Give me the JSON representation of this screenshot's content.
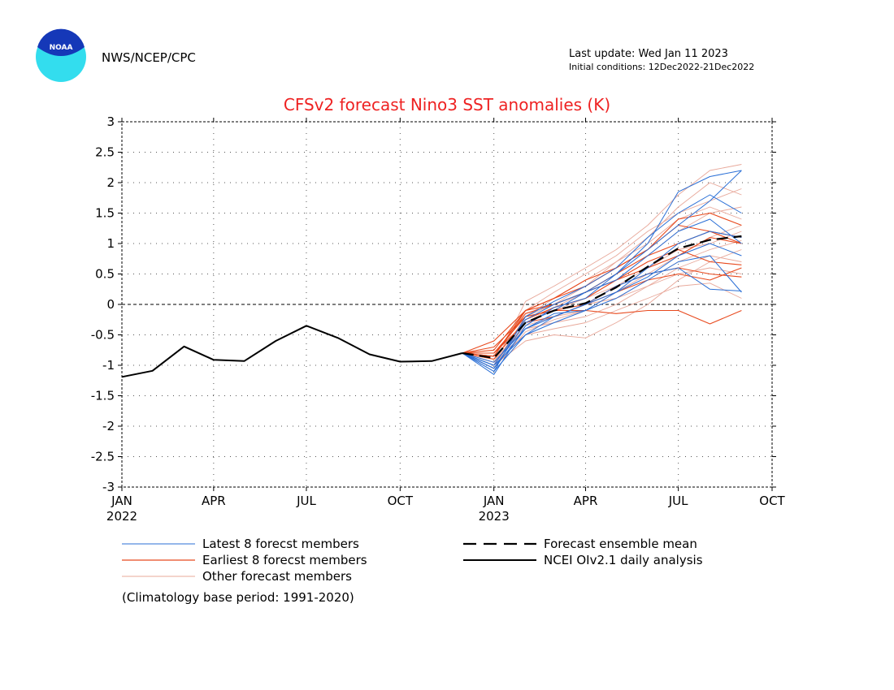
{
  "header": {
    "agency": "NWS/NCEP/CPC",
    "last_update": "Last update: Wed Jan 11 2023",
    "initial_conditions": "Initial conditions: 12Dec2022-21Dec2022",
    "logo_text": "NOAA"
  },
  "footnote": "(Climatology base period: 1991-2020)",
  "colors": {
    "title": "#ee2222",
    "latest": "#2a6fd6",
    "earliest": "#e8491d",
    "other": "#e8a89a",
    "mean": "#000000",
    "analysis": "#000000",
    "logo_outer": "#33ddee",
    "logo_inner": "#1538b8"
  },
  "chart_data": {
    "type": "line",
    "title": "CFSv2 forecast Nino3 SST anomalies (K)",
    "xlabel": "",
    "ylabel": "",
    "ylim": [
      -3,
      3
    ],
    "xlim": [
      "2022-01-01",
      "2023-10-01"
    ],
    "grid": true,
    "yticks": [
      {
        "value": -3,
        "label": "-3"
      },
      {
        "value": -2.5,
        "label": "-2.5"
      },
      {
        "value": -2,
        "label": "-2"
      },
      {
        "value": -1.5,
        "label": "-1.5"
      },
      {
        "value": -1,
        "label": "-1"
      },
      {
        "value": -0.5,
        "label": "-0.5"
      },
      {
        "value": 0,
        "label": "0"
      },
      {
        "value": 0.5,
        "label": "0.5"
      },
      {
        "value": 1,
        "label": "1"
      },
      {
        "value": 1.5,
        "label": "1.5"
      },
      {
        "value": 2,
        "label": "2"
      },
      {
        "value": 2.5,
        "label": "2.5"
      },
      {
        "value": 3,
        "label": "3"
      }
    ],
    "xticks": [
      {
        "date": "2022-01-01",
        "label": "JAN",
        "year": "2022"
      },
      {
        "date": "2022-04-01",
        "label": "APR",
        "year": ""
      },
      {
        "date": "2022-07-01",
        "label": "JUL",
        "year": ""
      },
      {
        "date": "2022-10-01",
        "label": "OCT",
        "year": ""
      },
      {
        "date": "2023-01-01",
        "label": "JAN",
        "year": "2023"
      },
      {
        "date": "2023-04-01",
        "label": "APR",
        "year": ""
      },
      {
        "date": "2023-07-01",
        "label": "JUL",
        "year": ""
      },
      {
        "date": "2023-10-01",
        "label": "OCT",
        "year": ""
      }
    ],
    "analysis": {
      "name": "NCEI OIv2.1 daily analysis",
      "x": [
        "2022-01-01",
        "2022-01-31",
        "2022-03-03",
        "2022-04-01",
        "2022-05-01",
        "2022-06-01",
        "2022-07-01",
        "2022-08-01",
        "2022-09-01",
        "2022-10-01",
        "2022-11-01",
        "2022-12-01"
      ],
      "y": [
        -1.19,
        -1.09,
        -0.69,
        -0.91,
        -0.93,
        -0.6,
        -0.35,
        -0.55,
        -0.82,
        -0.94,
        -0.93,
        -0.8
      ]
    },
    "forecast_months": [
      "2022-12-01",
      "2023-01-01",
      "2023-02-01",
      "2023-03-01",
      "2023-04-01",
      "2023-05-01",
      "2023-06-01",
      "2023-07-01",
      "2023-08-01",
      "2023-09-01"
    ],
    "mean": {
      "name": "Forecast ensemble mean",
      "y": [
        -0.8,
        -0.88,
        -0.3,
        -0.1,
        0.02,
        0.28,
        0.62,
        0.92,
        1.06,
        1.12
      ]
    },
    "series": [
      {
        "name": "Latest 8 forecst members",
        "group": "latest",
        "y": [
          -0.8,
          -1.15,
          -0.35,
          -0.05,
          0.1,
          0.5,
          1.0,
          1.85,
          2.1,
          2.2
        ]
      },
      {
        "name": "Latest 8 forecst members",
        "group": "latest",
        "y": [
          -0.8,
          -1.1,
          -0.2,
          0.05,
          0.3,
          0.6,
          1.1,
          1.5,
          1.8,
          1.5
        ]
      },
      {
        "name": "Latest 8 forecst members",
        "group": "latest",
        "y": [
          -0.8,
          -1.05,
          -0.4,
          -0.15,
          -0.1,
          0.1,
          0.4,
          0.7,
          0.8,
          0.2
        ]
      },
      {
        "name": "Latest 8 forecst members",
        "group": "latest",
        "y": [
          -0.8,
          -1.0,
          -0.5,
          -0.3,
          -0.1,
          0.2,
          0.6,
          1.0,
          1.2,
          1.1
        ]
      },
      {
        "name": "Latest 8 forecst members",
        "group": "latest",
        "y": [
          -0.8,
          -1.0,
          -0.25,
          0.0,
          0.2,
          0.4,
          0.8,
          1.2,
          1.4,
          1.0
        ]
      },
      {
        "name": "Latest 8 forecst members",
        "group": "latest",
        "y": [
          -0.8,
          -0.95,
          -0.4,
          -0.2,
          0.0,
          0.3,
          0.5,
          0.6,
          0.25,
          0.22
        ]
      },
      {
        "name": "Latest 8 forecst members",
        "group": "latest",
        "y": [
          -0.8,
          -1.1,
          -0.5,
          -0.2,
          0.0,
          0.2,
          0.45,
          0.8,
          1.0,
          0.8
        ]
      },
      {
        "name": "Latest 8 forecst members",
        "group": "latest",
        "y": [
          -0.8,
          -1.05,
          -0.3,
          -0.1,
          0.2,
          0.5,
          0.9,
          1.3,
          1.7,
          2.2
        ]
      },
      {
        "name": "Earliest 8 forecst members",
        "group": "earliest",
        "y": [
          -0.8,
          -0.6,
          -0.1,
          0.1,
          0.3,
          0.6,
          0.9,
          1.4,
          1.5,
          1.3
        ]
      },
      {
        "name": "Earliest 8 forecst members",
        "group": "earliest",
        "y": [
          -0.8,
          -0.7,
          -0.2,
          -0.1,
          -0.1,
          -0.15,
          -0.1,
          -0.1,
          -0.32,
          -0.1
        ]
      },
      {
        "name": "Earliest 8 forecst members",
        "group": "earliest",
        "y": [
          -0.8,
          -0.75,
          -0.1,
          0.0,
          0.2,
          0.4,
          0.6,
          0.8,
          1.1,
          1.0
        ]
      },
      {
        "name": "Earliest 8 forecst members",
        "group": "earliest",
        "y": [
          -0.8,
          -0.8,
          -0.3,
          -0.2,
          0.0,
          0.3,
          0.5,
          0.6,
          0.5,
          0.45
        ]
      },
      {
        "name": "Earliest 8 forecst members",
        "group": "earliest",
        "y": [
          -0.8,
          -0.85,
          -0.15,
          0.0,
          0.2,
          0.5,
          0.8,
          1.0,
          1.2,
          1.1
        ]
      },
      {
        "name": "Earliest 8 forecst members",
        "group": "earliest",
        "y": [
          -0.8,
          -0.9,
          -0.25,
          -0.05,
          0.1,
          0.4,
          0.7,
          0.9,
          0.7,
          0.65
        ]
      },
      {
        "name": "Earliest 8 forecst members",
        "group": "earliest",
        "y": [
          -0.8,
          -0.85,
          -0.1,
          0.1,
          0.4,
          0.6,
          0.9,
          1.3,
          1.2,
          1.0
        ]
      },
      {
        "name": "Earliest 8 forecst members",
        "group": "earliest",
        "y": [
          -0.8,
          -0.8,
          -0.2,
          -0.1,
          0.0,
          0.2,
          0.4,
          0.5,
          0.4,
          0.6
        ]
      },
      {
        "name": "Other forecast members",
        "group": "other",
        "y": [
          -0.8,
          -1.0,
          0.05,
          0.3,
          0.6,
          0.9,
          1.3,
          1.8,
          2.2,
          2.3
        ]
      },
      {
        "name": "Other forecast members",
        "group": "other",
        "y": [
          -0.8,
          -1.05,
          -0.3,
          -0.05,
          0.2,
          0.4,
          0.8,
          1.2,
          1.5,
          1.6
        ]
      },
      {
        "name": "Other forecast members",
        "group": "other",
        "y": [
          -0.8,
          -0.95,
          -0.4,
          -0.2,
          -0.1,
          0.1,
          0.3,
          0.5,
          0.6,
          0.5
        ]
      },
      {
        "name": "Other forecast members",
        "group": "other",
        "y": [
          -0.8,
          -0.9,
          -0.5,
          -0.4,
          -0.3,
          -0.1,
          0.1,
          0.3,
          0.35,
          0.1
        ]
      },
      {
        "name": "Other forecast members",
        "group": "other",
        "y": [
          -0.8,
          -1.05,
          -0.2,
          0.0,
          0.3,
          0.7,
          1.1,
          1.6,
          2.0,
          1.8
        ]
      },
      {
        "name": "Other forecast members",
        "group": "other",
        "y": [
          -0.8,
          -1.0,
          -0.6,
          -0.5,
          -0.55,
          -0.3,
          0.0,
          0.4,
          0.7,
          0.9
        ]
      },
      {
        "name": "Other forecast members",
        "group": "other",
        "y": [
          -0.8,
          -0.95,
          -0.1,
          0.2,
          0.5,
          0.8,
          1.2,
          1.5,
          1.7,
          1.9
        ]
      },
      {
        "name": "Other forecast members",
        "group": "other",
        "y": [
          -0.8,
          -1.0,
          -0.3,
          -0.1,
          0.1,
          0.3,
          0.6,
          0.9,
          1.0,
          1.2
        ]
      },
      {
        "name": "Other forecast members",
        "group": "other",
        "y": [
          -0.8,
          -0.9,
          -0.4,
          -0.3,
          -0.2,
          0.0,
          0.3,
          0.6,
          0.8,
          0.7
        ]
      },
      {
        "name": "Other forecast members",
        "group": "other",
        "y": [
          -0.8,
          -1.0,
          -0.2,
          0.1,
          0.4,
          0.7,
          1.0,
          1.4,
          1.6,
          1.4
        ]
      },
      {
        "name": "Other forecast members",
        "group": "other",
        "y": [
          -0.8,
          -0.95,
          -0.35,
          -0.2,
          0.0,
          0.1,
          0.4,
          0.7,
          0.9,
          1.05
        ]
      },
      {
        "name": "Other forecast members",
        "group": "other",
        "y": [
          -0.8,
          -1.05,
          -0.45,
          -0.25,
          -0.1,
          0.2,
          0.5,
          0.8,
          1.1,
          1.3
        ]
      }
    ],
    "legend": {
      "placement": "bottom",
      "entries": [
        {
          "label": "Latest 8 forecst members",
          "style": "latest"
        },
        {
          "label": "Earliest 8 forecst members",
          "style": "earliest"
        },
        {
          "label": "Other forecast members",
          "style": "other"
        },
        {
          "label": "Forecast ensemble mean",
          "style": "mean"
        },
        {
          "label": "NCEI OIv2.1 daily analysis",
          "style": "analysis"
        }
      ]
    }
  }
}
